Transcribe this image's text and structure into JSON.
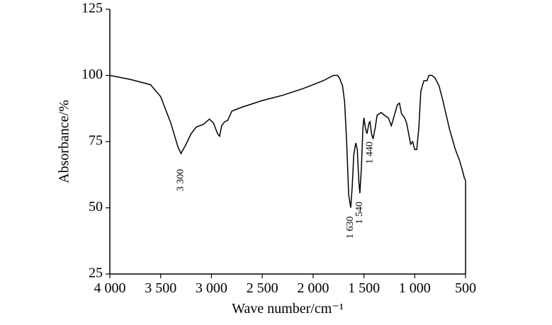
{
  "chart_data": {
    "type": "line",
    "xlabel": "Wave number/cm⁻¹",
    "ylabel": "Absorbance/%",
    "xlim": [
      4000,
      500
    ],
    "ylim": [
      25,
      125
    ],
    "xticks": [
      {
        "value": 4000,
        "label": "4 000"
      },
      {
        "value": 3500,
        "label": "3 500"
      },
      {
        "value": 3000,
        "label": "3 000"
      },
      {
        "value": 2500,
        "label": "2 500"
      },
      {
        "value": 2000,
        "label": "2 000"
      },
      {
        "value": 1500,
        "label": "1 500"
      },
      {
        "value": 1000,
        "label": "1 000"
      },
      500
    ],
    "yticks": [
      25,
      50,
      75,
      100,
      125
    ],
    "color": "#000000",
    "x": [
      4000,
      3800,
      3600,
      3500,
      3400,
      3330,
      3300,
      3250,
      3200,
      3150,
      3080,
      3020,
      2980,
      2940,
      2920,
      2900,
      2870,
      2840,
      2800,
      2700,
      2500,
      2300,
      2100,
      1900,
      1800,
      1760,
      1740,
      1710,
      1690,
      1670,
      1650,
      1630,
      1615,
      1600,
      1580,
      1565,
      1550,
      1540,
      1525,
      1510,
      1500,
      1485,
      1470,
      1450,
      1440,
      1425,
      1410,
      1390,
      1370,
      1330,
      1300,
      1260,
      1230,
      1200,
      1170,
      1150,
      1130,
      1100,
      1080,
      1060,
      1040,
      1020,
      1000,
      980,
      960,
      940,
      910,
      880,
      860,
      830,
      800,
      760,
      720,
      690,
      660,
      630,
      600,
      560,
      530,
      510,
      500
    ],
    "values": [
      100,
      98.5,
      96.5,
      92,
      82,
      73,
      70.5,
      74,
      78,
      80.5,
      81.5,
      83.5,
      82,
      78,
      77,
      81,
      82.5,
      83,
      86.5,
      88,
      90.5,
      92.5,
      95,
      98,
      100,
      100,
      99,
      96,
      90,
      75,
      55,
      50,
      58,
      70,
      74.5,
      72,
      60,
      55.5,
      65,
      80,
      84,
      80,
      78,
      82,
      82.5,
      78,
      76,
      80,
      85,
      86,
      85,
      84,
      81,
      85,
      89,
      89.5,
      85.5,
      84,
      82,
      78,
      74,
      75,
      72,
      72,
      80,
      94,
      98,
      98,
      100,
      100,
      99,
      96,
      90,
      85,
      80,
      76,
      72,
      68,
      64,
      61,
      60.5
    ],
    "annotations": [
      {
        "text": "3 300",
        "x": 3300,
        "y": 70.5
      },
      {
        "text": "1 630",
        "x": 1630,
        "y": 50
      },
      {
        "text": "1 540",
        "x": 1540,
        "y": 55.5
      },
      {
        "text": "1 440",
        "x": 1440,
        "y": 82.5
      }
    ]
  }
}
